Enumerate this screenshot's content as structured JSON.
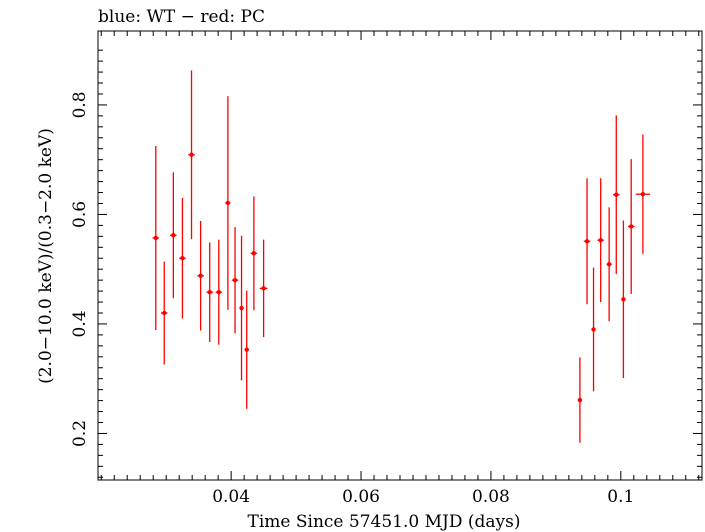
{
  "chart_data": {
    "type": "scatter",
    "title": "blue: WT − red: PC",
    "xlabel": "Time Since 57451.0 MJD (days)",
    "ylabel": "(2.0−10.0 keV)/(0.3−2.0 keV)",
    "xlim": [
      0.0195,
      0.1125
    ],
    "ylim": [
      0.115,
      0.935
    ],
    "xticks": [
      0.04,
      0.06,
      0.08,
      0.1
    ],
    "xtick_labels": [
      "0.04",
      "0.06",
      "0.08",
      "0.1"
    ],
    "yticks": [
      0.2,
      0.4,
      0.6,
      0.8
    ],
    "ytick_labels": [
      "0.2",
      "0.4",
      "0.6",
      "0.8"
    ],
    "grid": false,
    "series": [
      {
        "color": "#ff0000",
        "points": [
          {
            "x": 0.0284,
            "y": 0.557,
            "xerr": 0.0005,
            "ylo": 0.389,
            "yhi": 0.725
          },
          {
            "x": 0.0297,
            "y": 0.42,
            "xerr": 0.0005,
            "ylo": 0.326,
            "yhi": 0.514
          },
          {
            "x": 0.0311,
            "y": 0.562,
            "xerr": 0.0005,
            "ylo": 0.447,
            "yhi": 0.677
          },
          {
            "x": 0.0325,
            "y": 0.52,
            "xerr": 0.0005,
            "ylo": 0.41,
            "yhi": 0.63
          },
          {
            "x": 0.0339,
            "y": 0.709,
            "xerr": 0.0005,
            "ylo": 0.555,
            "yhi": 0.863
          },
          {
            "x": 0.0353,
            "y": 0.488,
            "xerr": 0.0005,
            "ylo": 0.388,
            "yhi": 0.588
          },
          {
            "x": 0.0367,
            "y": 0.458,
            "xerr": 0.0005,
            "ylo": 0.367,
            "yhi": 0.549
          },
          {
            "x": 0.0381,
            "y": 0.458,
            "xerr": 0.0005,
            "ylo": 0.362,
            "yhi": 0.554
          },
          {
            "x": 0.0395,
            "y": 0.621,
            "xerr": 0.0004,
            "ylo": 0.426,
            "yhi": 0.816
          },
          {
            "x": 0.0406,
            "y": 0.48,
            "xerr": 0.0005,
            "ylo": 0.383,
            "yhi": 0.577
          },
          {
            "x": 0.0416,
            "y": 0.429,
            "xerr": 0.0003,
            "ylo": 0.297,
            "yhi": 0.561
          },
          {
            "x": 0.0424,
            "y": 0.353,
            "xerr": 0.0003,
            "ylo": 0.245,
            "yhi": 0.461
          },
          {
            "x": 0.0435,
            "y": 0.529,
            "xerr": 0.0005,
            "ylo": 0.425,
            "yhi": 0.633
          },
          {
            "x": 0.045,
            "y": 0.465,
            "xerr": 0.0006,
            "ylo": 0.376,
            "yhi": 0.554
          },
          {
            "x": 0.0937,
            "y": 0.261,
            "xerr": 0.0003,
            "ylo": 0.183,
            "yhi": 0.339
          },
          {
            "x": 0.0948,
            "y": 0.551,
            "xerr": 0.0005,
            "ylo": 0.436,
            "yhi": 0.666
          },
          {
            "x": 0.0958,
            "y": 0.39,
            "xerr": 0.0003,
            "ylo": 0.277,
            "yhi": 0.503
          },
          {
            "x": 0.0969,
            "y": 0.553,
            "xerr": 0.0005,
            "ylo": 0.44,
            "yhi": 0.666
          },
          {
            "x": 0.0982,
            "y": 0.509,
            "xerr": 0.0004,
            "ylo": 0.405,
            "yhi": 0.613
          },
          {
            "x": 0.0993,
            "y": 0.636,
            "xerr": 0.0005,
            "ylo": 0.491,
            "yhi": 0.781
          },
          {
            "x": 0.1004,
            "y": 0.445,
            "xerr": 0.0003,
            "ylo": 0.301,
            "yhi": 0.589
          },
          {
            "x": 0.1016,
            "y": 0.578,
            "xerr": 0.0005,
            "ylo": 0.455,
            "yhi": 0.701
          },
          {
            "x": 0.1034,
            "y": 0.637,
            "xerr": 0.0011,
            "ylo": 0.528,
            "yhi": 0.746
          }
        ]
      }
    ]
  }
}
